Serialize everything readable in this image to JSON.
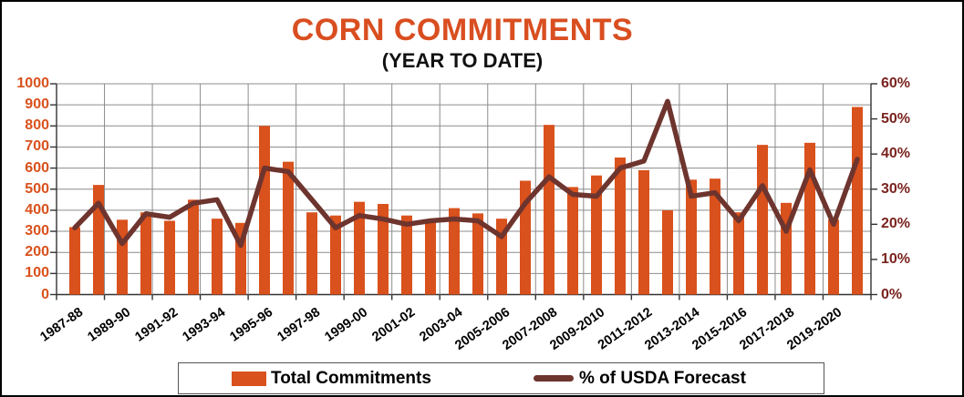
{
  "title": "CORN COMMITMENTS",
  "subtitle": "(YEAR TO DATE)",
  "legend": {
    "bar_label": "Total Commitments",
    "line_label": "% of USDA Forecast"
  },
  "colors": {
    "bar": "#D9511C",
    "line": "#6E342E",
    "title": "#D94E20",
    "left_axis_text": "#D9511C",
    "right_axis_text": "#7A231E",
    "grid": "#8C8C8C",
    "axis_line": "#333333"
  },
  "chart_data": {
    "type": "bar",
    "title": "CORN COMMITMENTS",
    "subtitle": "(YEAR TO DATE)",
    "grid": true,
    "legend_position": "bottom",
    "categories": [
      "1987-88",
      "1988-89",
      "1989-90",
      "1990-91",
      "1991-92",
      "1992-93",
      "1993-94",
      "1994-95",
      "1995-96",
      "1996-97",
      "1997-98",
      "1998-99",
      "1999-00",
      "2000-01",
      "2001-02",
      "2002-03",
      "2003-04",
      "2004-05",
      "2005-2006",
      "2006-2007",
      "2007-2008",
      "2008-2009",
      "2009-2010",
      "2010-2011",
      "2011-2012",
      "2012-2013",
      "2013-2014",
      "2014-2015",
      "2015-2016",
      "2016-2017",
      "2017-2018",
      "2018-2019",
      "2019-2020",
      "2020-2021"
    ],
    "x_tick_labels": [
      "1987-88",
      "1989-90",
      "1991-92",
      "1993-94",
      "1995-96",
      "1997-98",
      "1999-00",
      "2001-02",
      "2003-04",
      "2005-2006",
      "2007-2008",
      "2009-2010",
      "2011-2012",
      "2013-2014",
      "2015-2016",
      "2017-2018",
      "2019-2020"
    ],
    "series": [
      {
        "name": "Total Commitments",
        "type": "bar",
        "axis": "left",
        "values": [
          320,
          520,
          355,
          390,
          350,
          450,
          360,
          340,
          800,
          630,
          390,
          375,
          440,
          430,
          375,
          340,
          410,
          385,
          360,
          540,
          805,
          510,
          565,
          650,
          590,
          400,
          545,
          550,
          390,
          710,
          435,
          720,
          355,
          890
        ]
      },
      {
        "name": "% of USDA Forecast",
        "type": "line",
        "axis": "right",
        "values": [
          19,
          26,
          14.5,
          23,
          22,
          26,
          27,
          14,
          36,
          35,
          27,
          19,
          22.5,
          21.5,
          20,
          21,
          21.5,
          21,
          16.5,
          26,
          33.5,
          28.5,
          28,
          36,
          38,
          55,
          28,
          29,
          21,
          31,
          18,
          35.5,
          20,
          38.5
        ]
      }
    ],
    "left_axis": {
      "min": 0,
      "max": 1000,
      "step": 100,
      "ticks": [
        "1000",
        "900",
        "800",
        "700",
        "600",
        "500",
        "400",
        "300",
        "200",
        "100",
        "0"
      ]
    },
    "right_axis": {
      "min": 0,
      "max": 60,
      "step": 10,
      "ticks": [
        "60%",
        "50%",
        "40%",
        "30%",
        "20%",
        "10%",
        "0%"
      ]
    }
  }
}
